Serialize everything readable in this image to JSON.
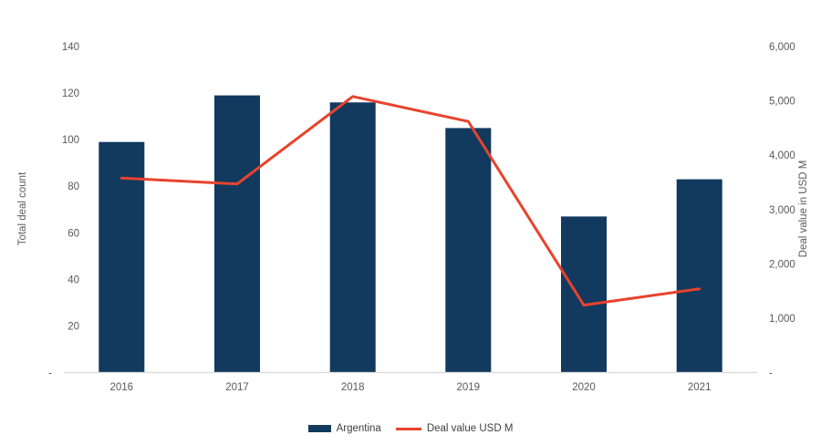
{
  "chart_data": {
    "type": "bar",
    "subtype": "combo-bar-line",
    "title": "",
    "categories": [
      "2016",
      "2017",
      "2018",
      "2019",
      "2020",
      "2021"
    ],
    "series": [
      {
        "name": "Argentina",
        "type": "bar",
        "axis": "left",
        "color": "#12395E",
        "values": [
          99,
          119,
          116,
          105,
          67,
          83
        ]
      },
      {
        "name": "Deal value USD M",
        "type": "line",
        "axis": "right",
        "color": "#E8432D",
        "values": [
          3580,
          3470,
          5080,
          4620,
          1240,
          1540
        ]
      }
    ],
    "left_axis": {
      "label": "Total deal count",
      "min": 0,
      "max": 140,
      "step": 20,
      "zero_label": "-",
      "tick_labels": [
        "-",
        "20",
        "40",
        "60",
        "80",
        "100",
        "120",
        "140"
      ]
    },
    "right_axis": {
      "label": "Deal value in USD M",
      "min": 0,
      "max": 6000,
      "step": 1000,
      "zero_label": "-",
      "tick_labels": [
        "-",
        "1,000",
        "2,000",
        "3,000",
        "4,000",
        "5,000",
        "6,000"
      ]
    },
    "x_axis": {
      "tick_labels": [
        "2016",
        "2017",
        "2018",
        "2019",
        "2020",
        "2021"
      ]
    },
    "grid": false,
    "legend_position": "bottom"
  },
  "colors": {
    "bar": "#12395E",
    "line": "#E8432D",
    "tick_text": "#595959",
    "legend_text": "#404040",
    "axis_line": "#D9D9D9",
    "background": "#FFFFFF"
  }
}
